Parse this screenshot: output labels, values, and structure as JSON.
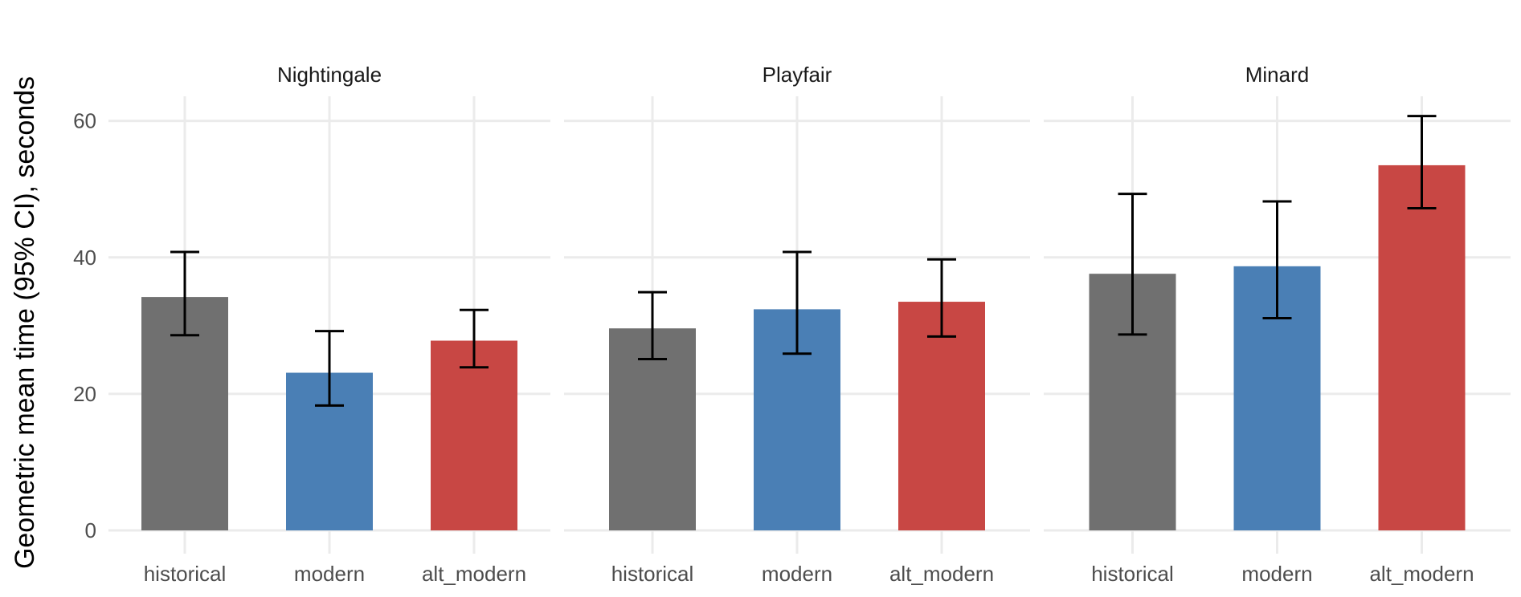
{
  "chart_data": {
    "type": "bar",
    "ylabel": "Geometric mean time (95% CI), seconds",
    "xlabel": "",
    "ylim": [
      0,
      65
    ],
    "y_ticks": [
      0,
      20,
      40,
      60
    ],
    "y_tick_labels": [
      "0",
      "20",
      "40",
      "60"
    ],
    "categories": [
      "historical",
      "modern",
      "alt_modern"
    ],
    "colors": {
      "historical": "#707070",
      "modern": "#4a7fb5",
      "alt_modern": "#c84744"
    },
    "grid": true,
    "legend": "none",
    "facets": [
      {
        "title": "Nightingale",
        "bars": [
          {
            "category": "historical",
            "value": 34.2,
            "ci_low": 28.6,
            "ci_high": 40.8
          },
          {
            "category": "modern",
            "value": 23.1,
            "ci_low": 18.3,
            "ci_high": 29.2
          },
          {
            "category": "alt_modern",
            "value": 27.8,
            "ci_low": 23.9,
            "ci_high": 32.3
          }
        ]
      },
      {
        "title": "Playfair",
        "bars": [
          {
            "category": "historical",
            "value": 29.6,
            "ci_low": 25.1,
            "ci_high": 34.9
          },
          {
            "category": "modern",
            "value": 32.4,
            "ci_low": 25.9,
            "ci_high": 40.8
          },
          {
            "category": "alt_modern",
            "value": 33.5,
            "ci_low": 28.4,
            "ci_high": 39.7
          }
        ]
      },
      {
        "title": "Minard",
        "bars": [
          {
            "category": "historical",
            "value": 37.6,
            "ci_low": 28.7,
            "ci_high": 49.3
          },
          {
            "category": "modern",
            "value": 38.7,
            "ci_low": 31.1,
            "ci_high": 48.2
          },
          {
            "category": "alt_modern",
            "value": 53.5,
            "ci_low": 47.2,
            "ci_high": 60.7
          }
        ]
      }
    ]
  }
}
